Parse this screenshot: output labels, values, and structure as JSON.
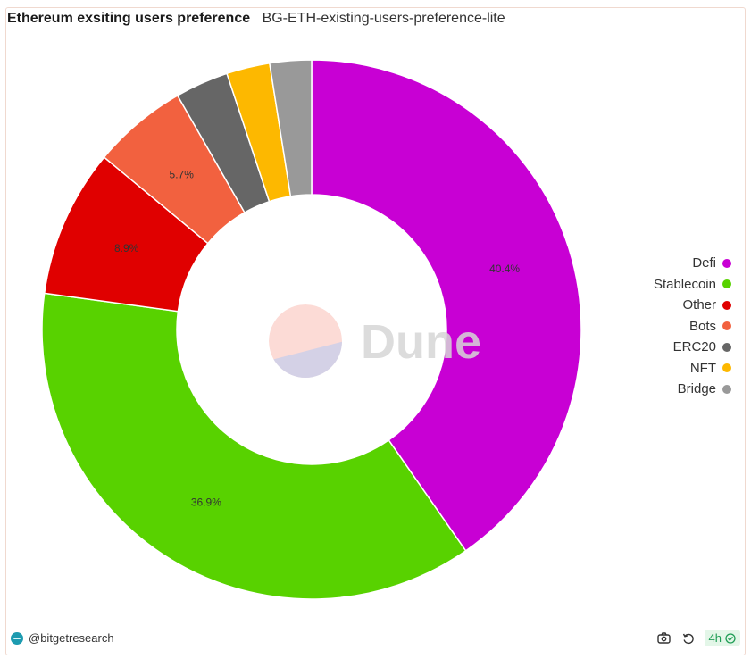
{
  "header": {
    "title": "Ethereum exsiting users preference",
    "subtitle": "BG-ETH-existing-users-preference-lite"
  },
  "watermark": {
    "text": "Dune"
  },
  "chart_data": {
    "type": "pie",
    "donut": true,
    "legend_position": "right",
    "categories": [
      "Defi",
      "Stablecoin",
      "Other",
      "Bots",
      "ERC20",
      "NFT",
      "Bridge"
    ],
    "values": [
      40.4,
      36.9,
      8.9,
      5.7,
      3.2,
      2.6,
      2.5
    ],
    "labels": [
      "40.4%",
      "36.9%",
      "8.9%",
      "5.7%",
      "",
      "",
      ""
    ],
    "colors": [
      "#c800d4",
      "#58d200",
      "#e00000",
      "#f2613f",
      "#666666",
      "#fdb800",
      "#999999"
    ]
  },
  "footer": {
    "author": "@bitgetresearch",
    "age": "4h",
    "camera_icon": "camera-icon",
    "refresh_icon": "refresh-icon",
    "check_icon": "check-circle-icon"
  }
}
